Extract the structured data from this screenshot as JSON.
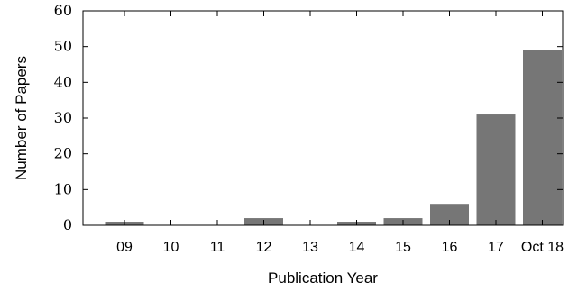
{
  "chart_data": {
    "type": "bar",
    "title": "",
    "xlabel": "Publication Year",
    "ylabel": "Number of Papers",
    "categories": [
      "09",
      "10",
      "11",
      "12",
      "13",
      "14",
      "15",
      "16",
      "17",
      "Oct 18"
    ],
    "values": [
      1,
      0,
      0,
      2,
      0,
      1,
      2,
      6,
      31,
      49
    ],
    "ylim": [
      0,
      60
    ],
    "yticks": [
      0,
      10,
      20,
      30,
      40,
      50,
      60
    ],
    "grid": false,
    "bar_color": "#767676"
  }
}
